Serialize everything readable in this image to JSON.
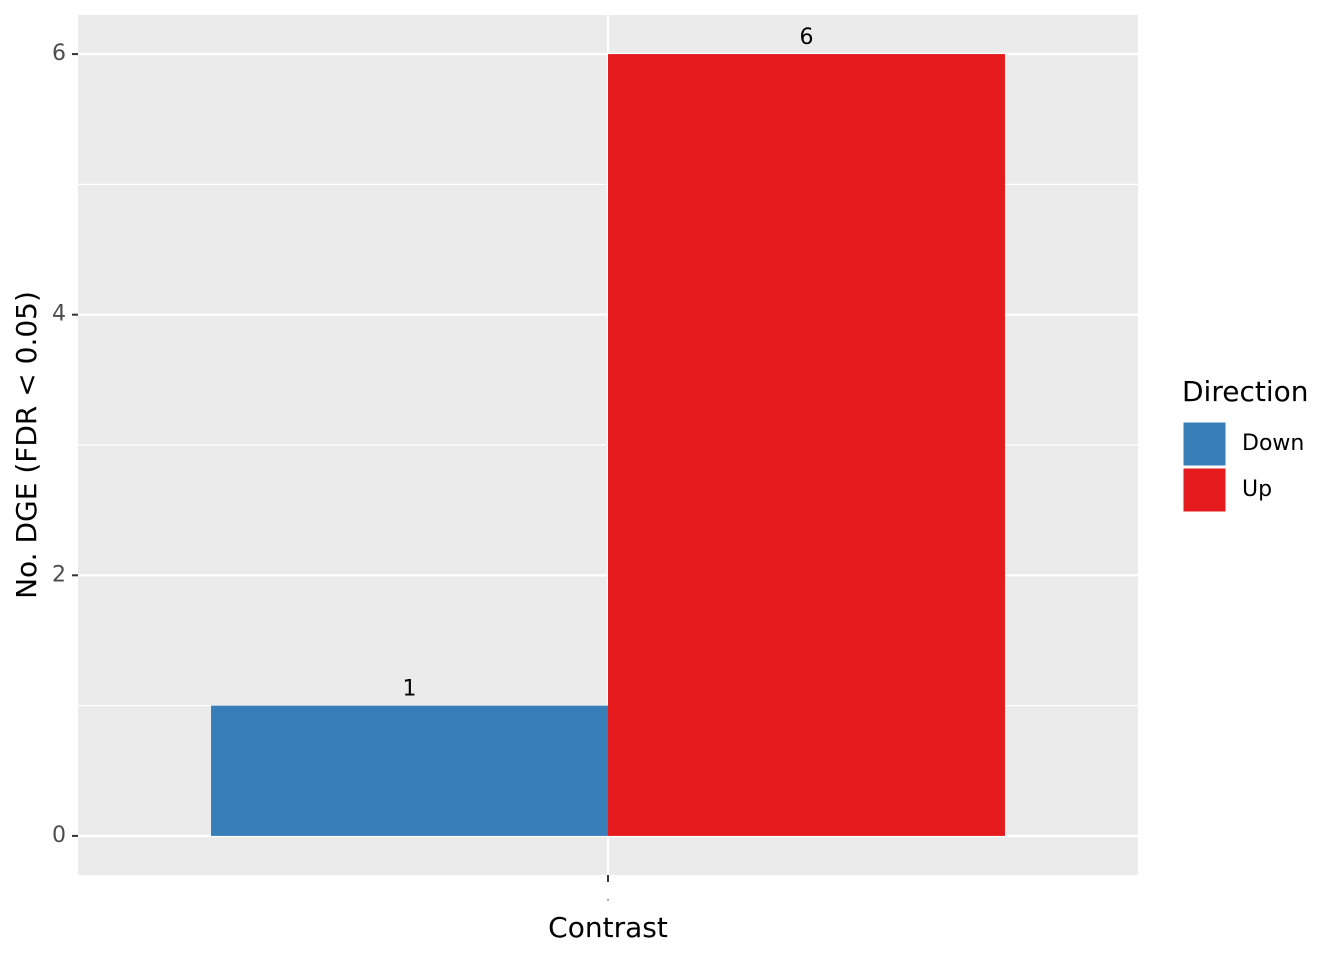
{
  "chart_data": {
    "type": "bar",
    "x_label": "Contrast",
    "y_label": "No. DGE (FDR < 0.05)",
    "categories": [
      "."
    ],
    "series": [
      {
        "name": "Down",
        "color": "#377eb8",
        "values": [
          1
        ]
      },
      {
        "name": "Up",
        "color": "#e41a1c",
        "values": [
          6
        ]
      }
    ],
    "legend_title": "Direction",
    "legend_position": "right",
    "ylim": [
      -0.3,
      6.3
    ],
    "yticks": [
      0,
      2,
      4,
      6
    ],
    "grid": true
  }
}
